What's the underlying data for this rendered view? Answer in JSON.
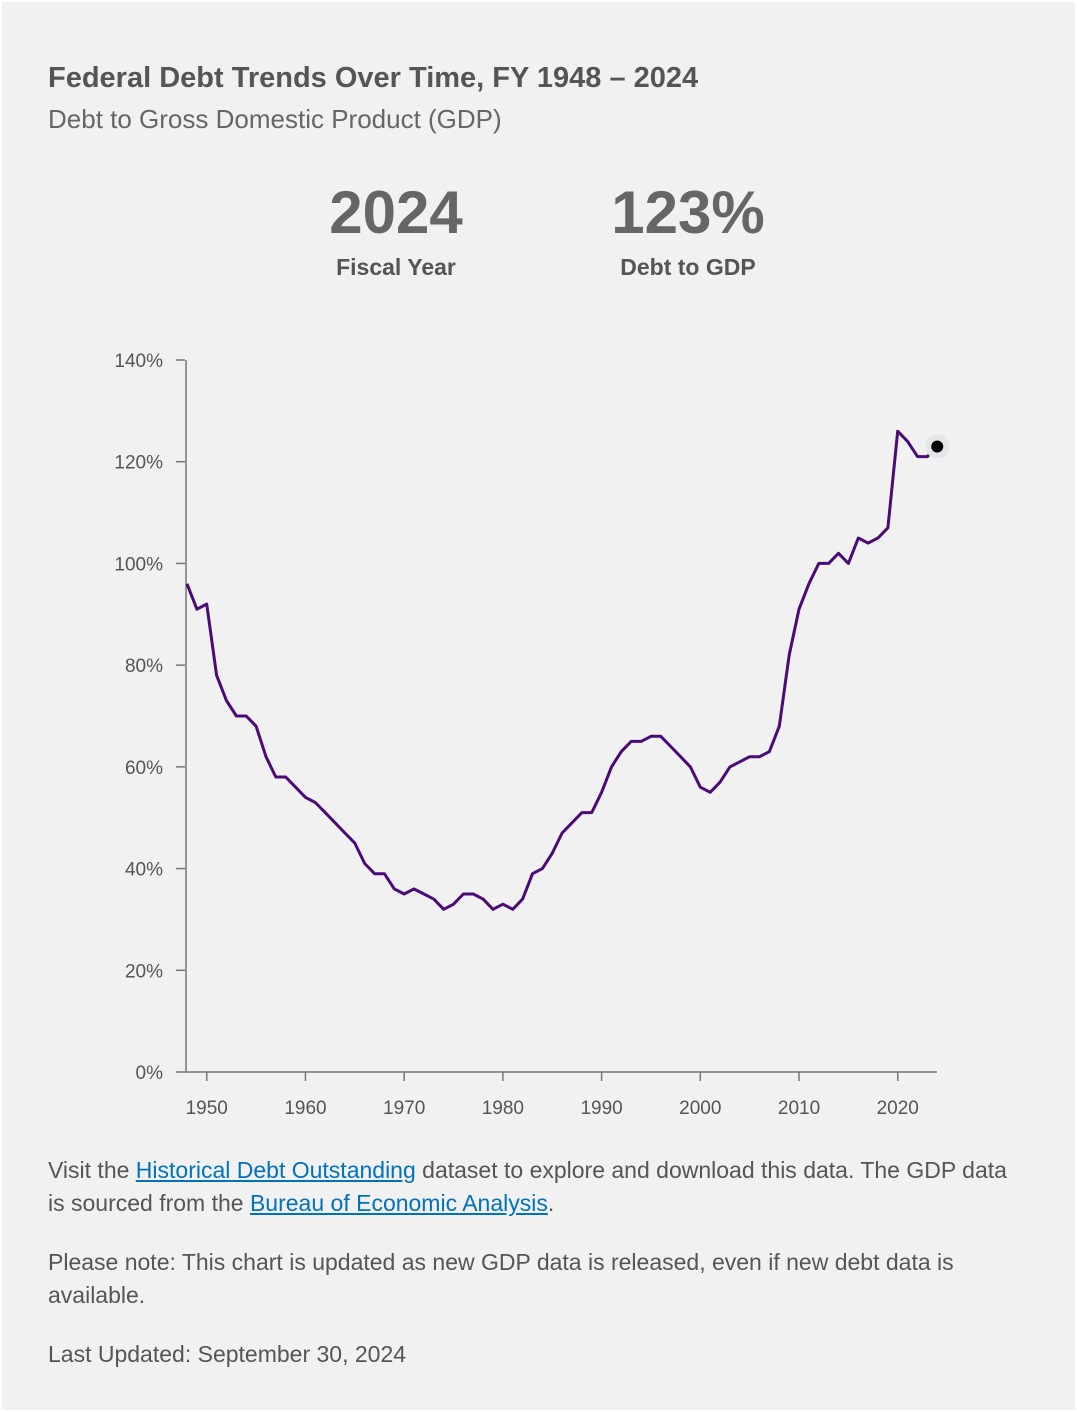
{
  "header": {
    "title": "Federal Debt Trends Over Time, FY 1948 – 2024",
    "subtitle": "Debt to Gross Domestic Product (GDP)"
  },
  "stats": [
    {
      "value": "2024",
      "label": "Fiscal Year"
    },
    {
      "value": "123%",
      "label": "Debt to GDP"
    }
  ],
  "colors": {
    "line": "#4b0a76",
    "background": "#f1f1f1",
    "link": "#0071bc",
    "marker": "#000000"
  },
  "chart_data": {
    "type": "line",
    "title": "",
    "xlabel": "",
    "ylabel": "",
    "xlim": [
      1948,
      2024
    ],
    "ylim": [
      0,
      140
    ],
    "yticks": [
      "0%",
      "20%",
      "40%",
      "60%",
      "80%",
      "100%",
      "120%",
      "140%"
    ],
    "xticks": [
      "1950",
      "1960",
      "1970",
      "1980",
      "1990",
      "2000",
      "2010",
      "2020"
    ],
    "grid": false,
    "highlight": {
      "x": 2024,
      "y": 123
    },
    "x": [
      1948,
      1949,
      1950,
      1951,
      1952,
      1953,
      1954,
      1955,
      1956,
      1957,
      1958,
      1959,
      1960,
      1961,
      1962,
      1963,
      1964,
      1965,
      1966,
      1967,
      1968,
      1969,
      1970,
      1971,
      1972,
      1973,
      1974,
      1975,
      1976,
      1977,
      1978,
      1979,
      1980,
      1981,
      1982,
      1983,
      1984,
      1985,
      1986,
      1987,
      1988,
      1989,
      1990,
      1991,
      1992,
      1993,
      1994,
      1995,
      1996,
      1997,
      1998,
      1999,
      2000,
      2001,
      2002,
      2003,
      2004,
      2005,
      2006,
      2007,
      2008,
      2009,
      2010,
      2011,
      2012,
      2013,
      2014,
      2015,
      2016,
      2017,
      2018,
      2019,
      2020,
      2021,
      2022,
      2023,
      2024
    ],
    "values": [
      96,
      91,
      92,
      78,
      73,
      70,
      70,
      68,
      62,
      58,
      58,
      56,
      54,
      53,
      51,
      49,
      47,
      45,
      41,
      39,
      39,
      36,
      35,
      36,
      35,
      34,
      32,
      33,
      35,
      35,
      34,
      32,
      33,
      32,
      34,
      39,
      40,
      43,
      47,
      49,
      51,
      51,
      55,
      60,
      63,
      65,
      65,
      66,
      66,
      64,
      62,
      60,
      56,
      55,
      57,
      60,
      61,
      62,
      62,
      63,
      68,
      82,
      91,
      96,
      100,
      100,
      102,
      100,
      105,
      104,
      105,
      107,
      126,
      124,
      121,
      121,
      123
    ]
  },
  "footer": {
    "p1_pre": "Visit the ",
    "p1_link1": "Historical Debt Outstanding",
    "p1_mid": " dataset to explore and download this data. The GDP data is sourced from the ",
    "p1_link2": "Bureau of Economic Analysis",
    "p1_post": ".",
    "p2": "Please note: This chart is updated as new GDP data is released, even if new debt data is available.",
    "updated": "Last Updated: September 30, 2024"
  }
}
